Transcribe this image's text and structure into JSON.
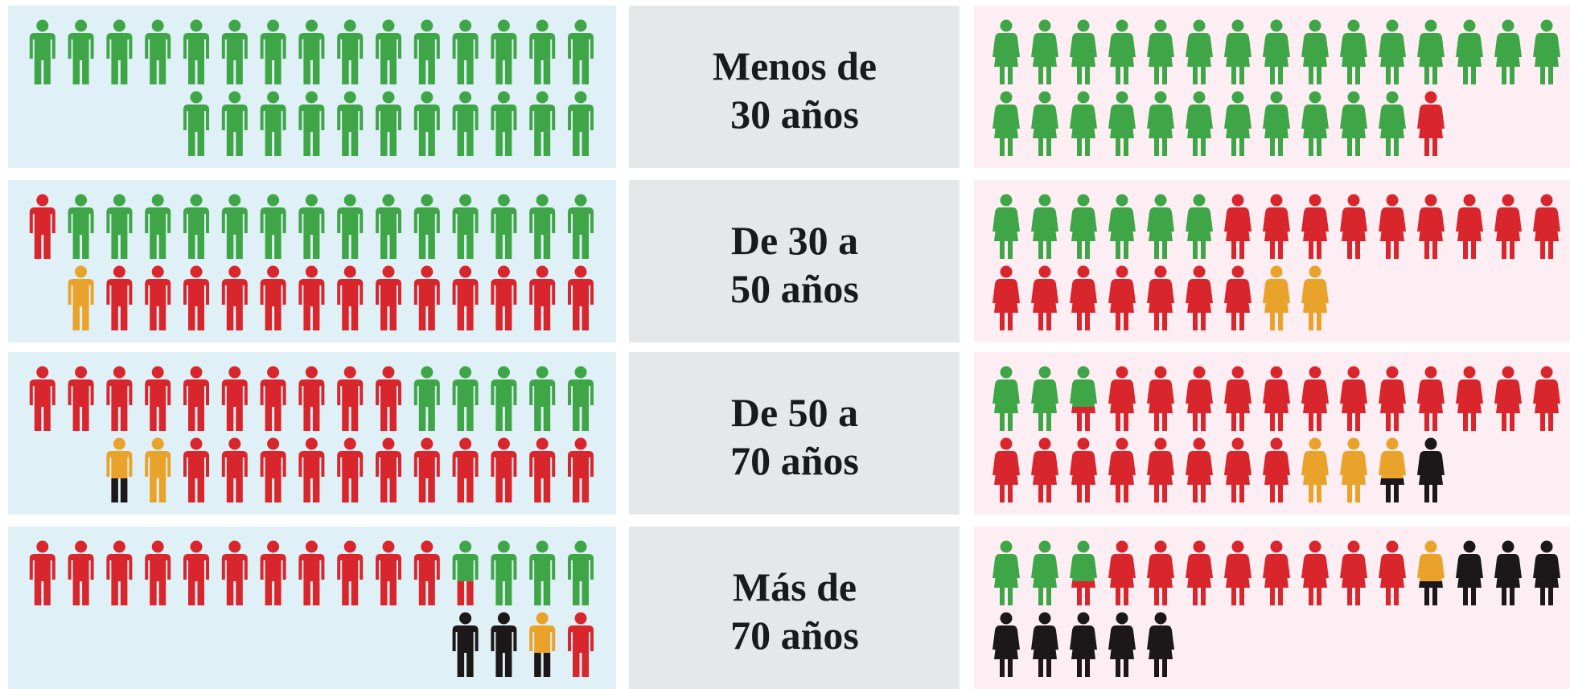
{
  "colors": {
    "green": "#3fa648",
    "red": "#d9262c",
    "orange": "#eaa32a",
    "black": "#1c1718"
  },
  "panels": {
    "men": "#dff0f6",
    "labels": "#e6e7e9",
    "women": "#fdeef3"
  },
  "rows": [
    {
      "label": [
        "Menos de",
        "30 años"
      ],
      "men": [
        [
          "green",
          "green",
          "green",
          "green",
          "green",
          "green",
          "green",
          "green",
          "green",
          "green",
          "green",
          "green",
          "green",
          "green",
          "green"
        ],
        [
          "green",
          "green",
          "green",
          "green",
          "green",
          "green",
          "green",
          "green",
          "green",
          "green",
          "green"
        ]
      ],
      "women": [
        [
          "green",
          "green",
          "green",
          "green",
          "green",
          "green",
          "green",
          "green",
          "green",
          "green",
          "green",
          "green",
          "green",
          "green",
          "green"
        ],
        [
          "green",
          "green",
          "green",
          "green",
          "green",
          "green",
          "green",
          "green",
          "green",
          "green",
          "green",
          "red"
        ]
      ]
    },
    {
      "label": [
        "De 30 a",
        "50 años"
      ],
      "men": [
        [
          "red",
          "green",
          "green",
          "green",
          "green",
          "green",
          "green",
          "green",
          "green",
          "green",
          "green",
          "green",
          "green",
          "green",
          "green"
        ],
        [
          "orange",
          "red",
          "red",
          "red",
          "red",
          "red",
          "red",
          "red",
          "red",
          "red",
          "red",
          "red",
          "red",
          "red"
        ]
      ],
      "women": [
        [
          "green",
          "green",
          "green",
          "green",
          "green",
          "green",
          "red",
          "red",
          "red",
          "red",
          "red",
          "red",
          "red",
          "red",
          "red"
        ],
        [
          "red",
          "red",
          "red",
          "red",
          "red",
          "red",
          "red",
          "orange",
          "orange"
        ]
      ]
    },
    {
      "label": [
        "De 50 a",
        "70 años"
      ],
      "men": [
        [
          "red",
          "red",
          "red",
          "red",
          "red",
          "red",
          "red",
          "red",
          "red",
          "red",
          "green",
          "green",
          "green",
          "green",
          "green"
        ],
        [
          "orange/black",
          "orange",
          "red",
          "red",
          "red",
          "red",
          "red",
          "red",
          "red",
          "red",
          "red",
          "red",
          "red"
        ]
      ],
      "women": [
        [
          "green",
          "green",
          "green/red",
          "red",
          "red",
          "red",
          "red",
          "red",
          "red",
          "red",
          "red",
          "red",
          "red",
          "red",
          "red"
        ],
        [
          "red",
          "red",
          "red",
          "red",
          "red",
          "red",
          "red",
          "red",
          "orange",
          "orange",
          "orange/black",
          "black"
        ]
      ]
    },
    {
      "label": [
        "Más de",
        "70 años"
      ],
      "men": [
        [
          "red",
          "red",
          "red",
          "red",
          "red",
          "red",
          "red",
          "red",
          "red",
          "red",
          "red",
          "green/red",
          "green",
          "green",
          "green"
        ],
        [
          "black",
          "black",
          "orange/black",
          "red"
        ]
      ],
      "women": [
        [
          "green",
          "green",
          "green/red",
          "red",
          "red",
          "red",
          "red",
          "red",
          "red",
          "red",
          "red",
          "orange/black",
          "black",
          "black",
          "black"
        ],
        [
          "black",
          "black",
          "black",
          "black",
          "black"
        ]
      ]
    }
  ]
}
